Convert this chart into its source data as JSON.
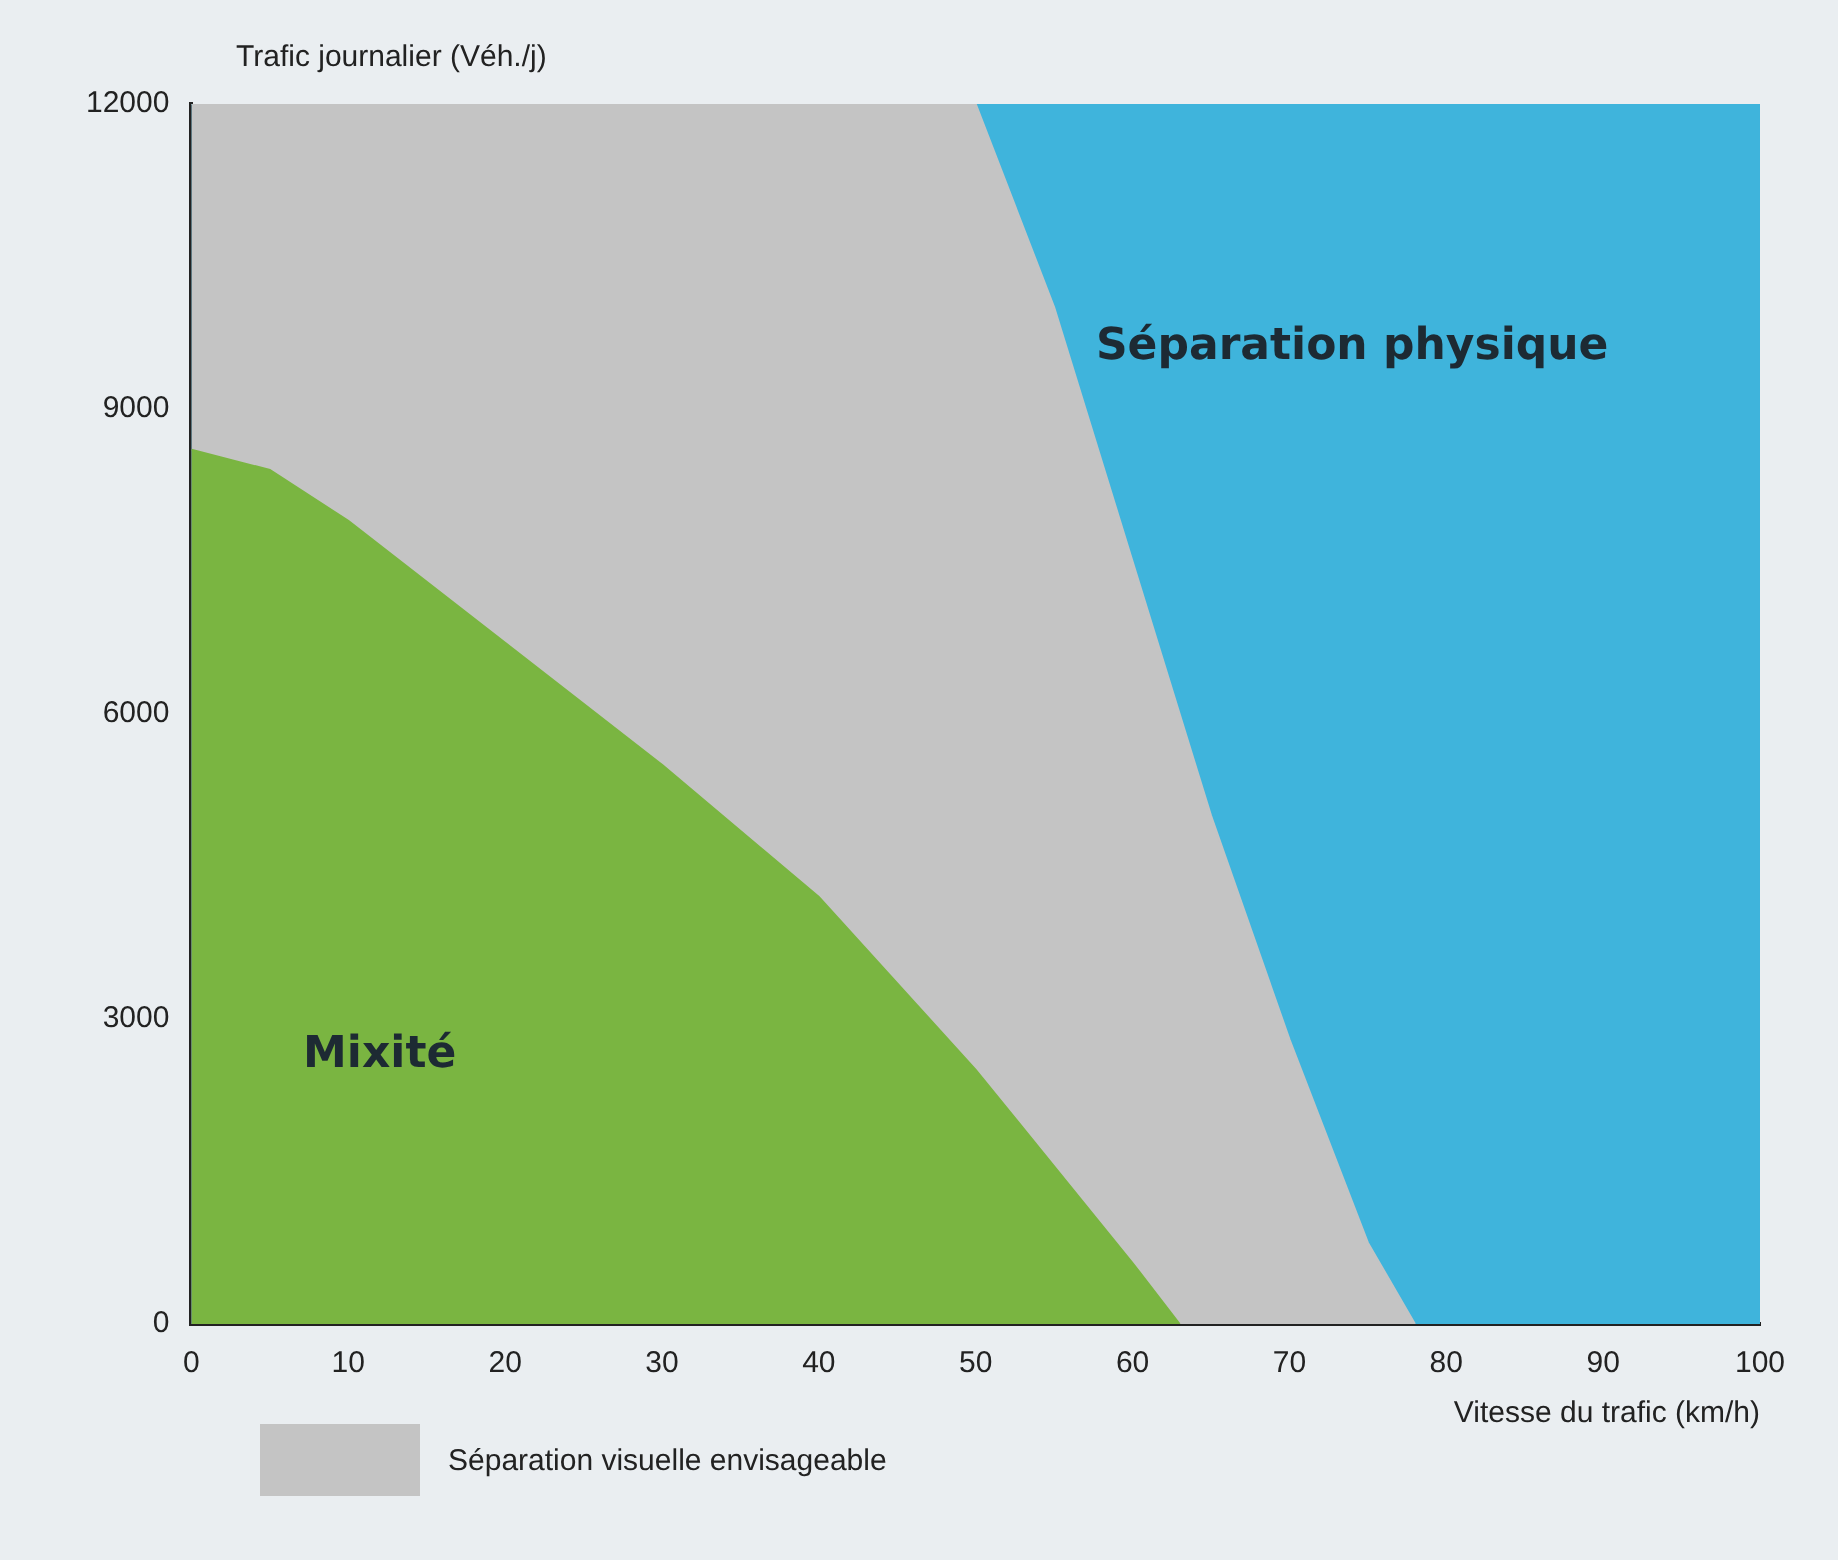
{
  "chart_data": {
    "type": "area",
    "ylabel": "Trafic journalier (Véh./j)",
    "xlabel": "Vitesse du trafic (km/h)",
    "series": [
      {
        "color": "#7ab541",
        "x": [
          0,
          5,
          10,
          20,
          30,
          40,
          50,
          60,
          63
        ],
        "values": [
          8600,
          8400,
          7900,
          6700,
          5500,
          4200,
          2500,
          600,
          0
        ]
      },
      {
        "name": "Séparation visuelle envisageable",
        "color": "#c4c4c4",
        "x": [
          0,
          50,
          55,
          60,
          65,
          70,
          75,
          78
        ],
        "values": [
          12000,
          12000,
          10000,
          7500,
          5000,
          2800,
          800,
          0
        ]
      },
      {
        "color": "#3fb4dc",
        "x": [
          0,
          100
        ],
        "values": [
          12000,
          12000
        ]
      }
    ],
    "annotations": [
      "Mixité",
      "Séparation physique"
    ],
    "xlim": [
      0,
      100
    ],
    "xticks": [
      0,
      10,
      20,
      30,
      40,
      50,
      60,
      70,
      80,
      90,
      100
    ],
    "ylim": [
      0,
      12000
    ],
    "yticks": [
      0,
      3000,
      6000,
      9000,
      12000
    ],
    "grid": false,
    "legend": "bottom left"
  }
}
